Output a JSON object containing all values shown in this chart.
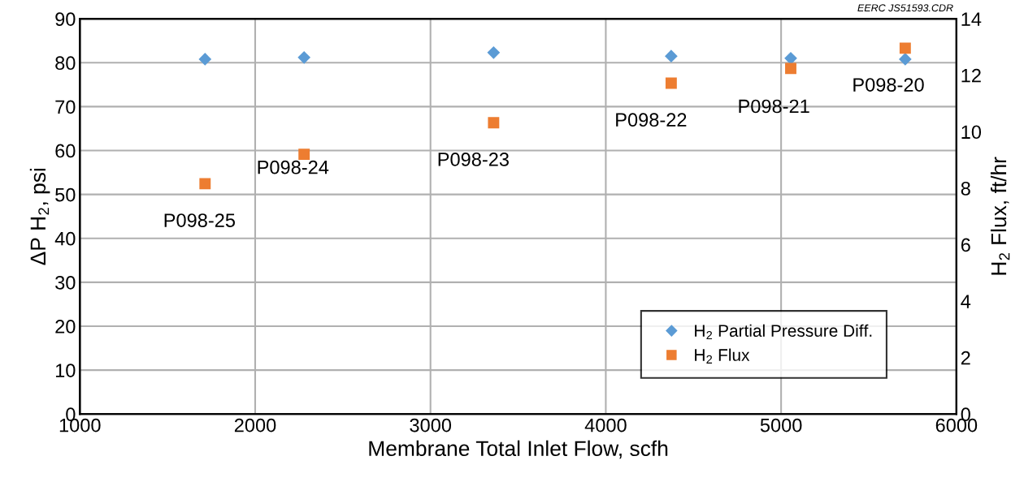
{
  "chart_data": {
    "type": "scatter",
    "xlabel": "Membrane Total Inlet Flow, scfh",
    "ylabel": "ΔP H$_{2}$, psi",
    "y2label": "H$_{2}$ Flux, ft/hr",
    "x": [
      1714,
      2279,
      3360,
      4373,
      5055,
      5708
    ],
    "series": [
      {
        "name": "H$_{2}$ Partial Pressure Diff.",
        "color": "#5b9bd5",
        "marker": "diamond",
        "values": [
          80.8,
          81.2,
          82.3,
          81.5,
          81.0,
          80.8
        ]
      },
      {
        "name": "H$_{2}$ Flux",
        "color": "#ed7d31",
        "marker": "square",
        "axis": "y2",
        "values": [
          8.16,
          9.2,
          10.32,
          11.72,
          12.24,
          12.96
        ]
      }
    ],
    "xlim": [
      1000,
      6000
    ],
    "xticks": [
      1000,
      2000,
      3000,
      4000,
      5000,
      6000
    ],
    "ylim": [
      0,
      90
    ],
    "yticks": [
      0,
      10,
      20,
      30,
      40,
      50,
      60,
      70,
      80,
      90
    ],
    "y2lim": [
      0,
      14
    ],
    "y2ticks": [
      0,
      2,
      4,
      6,
      8,
      10,
      12,
      14
    ],
    "grid": true,
    "legend": "bottom right",
    "annotations": [
      "P098-25",
      "P098-24",
      "P098-23",
      "P098-22",
      "P098-21",
      "P098-20",
      "EERC JS51593.CDR"
    ]
  }
}
